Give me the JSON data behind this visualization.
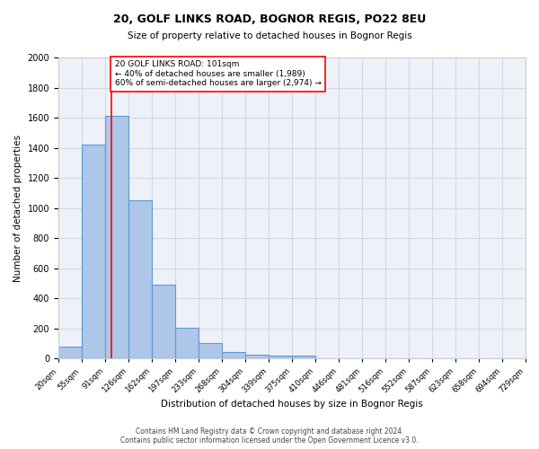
{
  "title_line1": "20, GOLF LINKS ROAD, BOGNOR REGIS, PO22 8EU",
  "title_line2": "Size of property relative to detached houses in Bognor Regis",
  "xlabel": "Distribution of detached houses by size in Bognor Regis",
  "ylabel": "Number of detached properties",
  "bin_labels": [
    "20sqm",
    "55sqm",
    "91sqm",
    "126sqm",
    "162sqm",
    "197sqm",
    "233sqm",
    "268sqm",
    "304sqm",
    "339sqm",
    "375sqm",
    "410sqm",
    "446sqm",
    "481sqm",
    "516sqm",
    "552sqm",
    "587sqm",
    "623sqm",
    "658sqm",
    "694sqm",
    "729sqm"
  ],
  "bar_heights": [
    80,
    1420,
    1610,
    1050,
    490,
    205,
    103,
    42,
    28,
    22,
    18,
    0,
    0,
    0,
    0,
    0,
    0,
    0,
    0,
    0
  ],
  "bar_color": "#aec6e8",
  "bar_edge_color": "#5b9bd5",
  "grid_color": "#d0d8e8",
  "background_color": "#eef2f8",
  "property_line_x": 101,
  "property_line_color": "red",
  "annotation_text": "20 GOLF LINKS ROAD: 101sqm\n← 40% of detached houses are smaller (1,989)\n60% of semi-detached houses are larger (2,974) →",
  "annotation_box_color": "white",
  "annotation_box_edge": "red",
  "ylim": [
    0,
    2000
  ],
  "yticks": [
    0,
    200,
    400,
    600,
    800,
    1000,
    1200,
    1400,
    1600,
    1800,
    2000
  ],
  "footnote": "Contains HM Land Registry data © Crown copyright and database right 2024.\nContains public sector information licensed under the Open Government Licence v3.0.",
  "bin_edges": [
    20,
    55,
    91,
    126,
    162,
    197,
    233,
    268,
    304,
    339,
    375,
    410,
    446,
    481,
    516,
    552,
    587,
    623,
    658,
    694,
    729
  ]
}
